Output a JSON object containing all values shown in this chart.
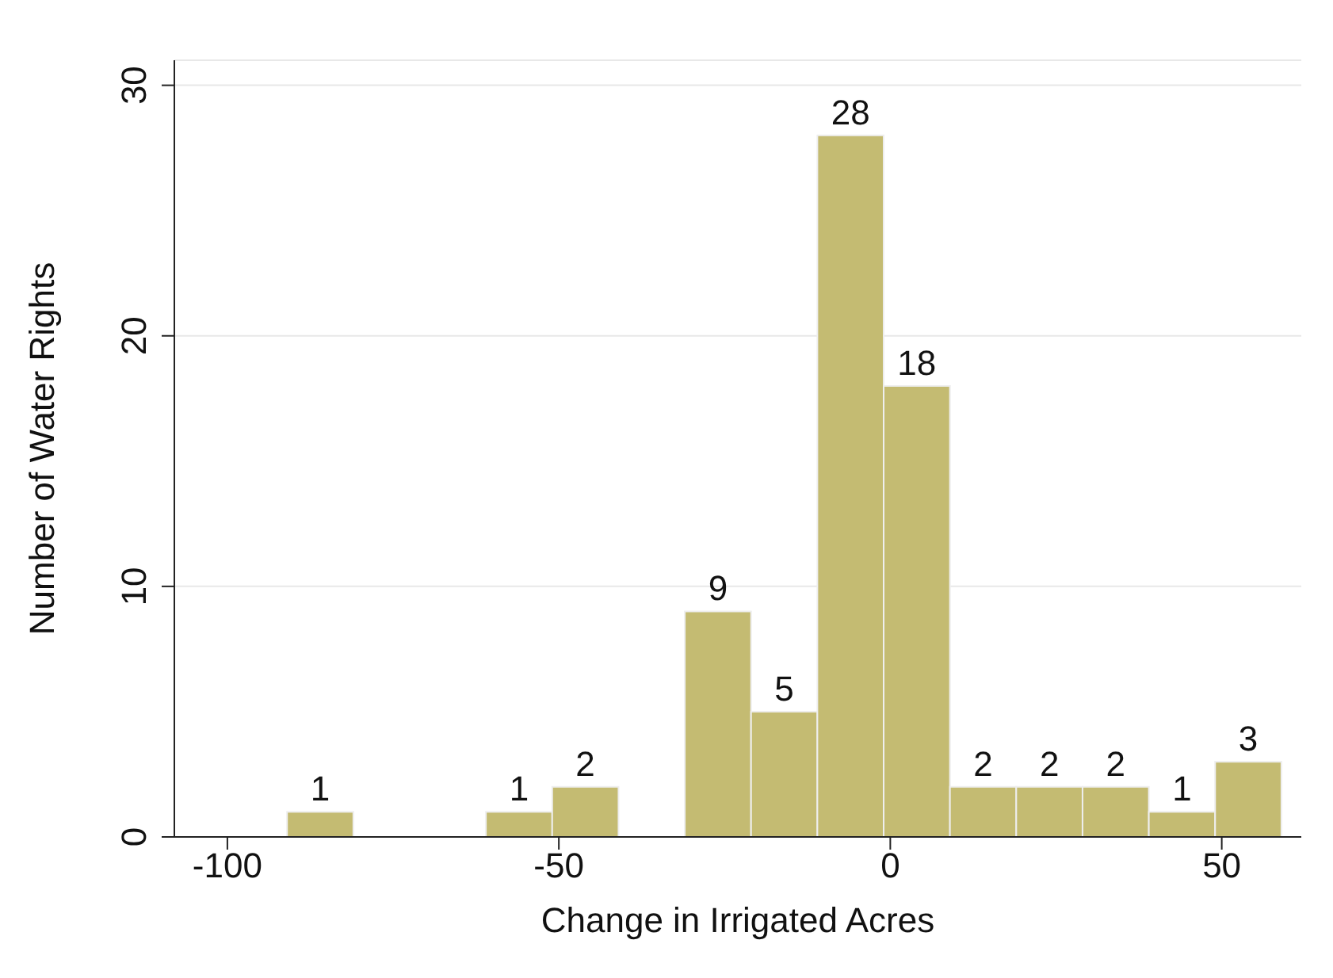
{
  "chart_data": {
    "type": "histogram",
    "xlabel": "Change in Irrigated Acres",
    "ylabel": "Number of Water Rights",
    "bins": [
      -91,
      -81,
      -71,
      -61,
      -51,
      -41,
      -31,
      -21,
      -11,
      -1,
      9,
      19,
      29,
      39,
      49,
      59
    ],
    "values": [
      1,
      0,
      0,
      1,
      2,
      0,
      9,
      5,
      28,
      18,
      2,
      2,
      2,
      1,
      3
    ],
    "color": "#c4bb72",
    "xlim": [
      -108,
      62
    ],
    "xticks": [
      -100,
      -50,
      0,
      50
    ],
    "ylim": [
      0,
      31
    ],
    "yticks": [
      0,
      10,
      20,
      30
    ],
    "value_labels": [
      "1",
      null,
      null,
      "1",
      "2",
      null,
      "9",
      "5",
      "28",
      "18",
      "2",
      "2",
      "2",
      "1",
      "3"
    ],
    "grid": "y"
  }
}
